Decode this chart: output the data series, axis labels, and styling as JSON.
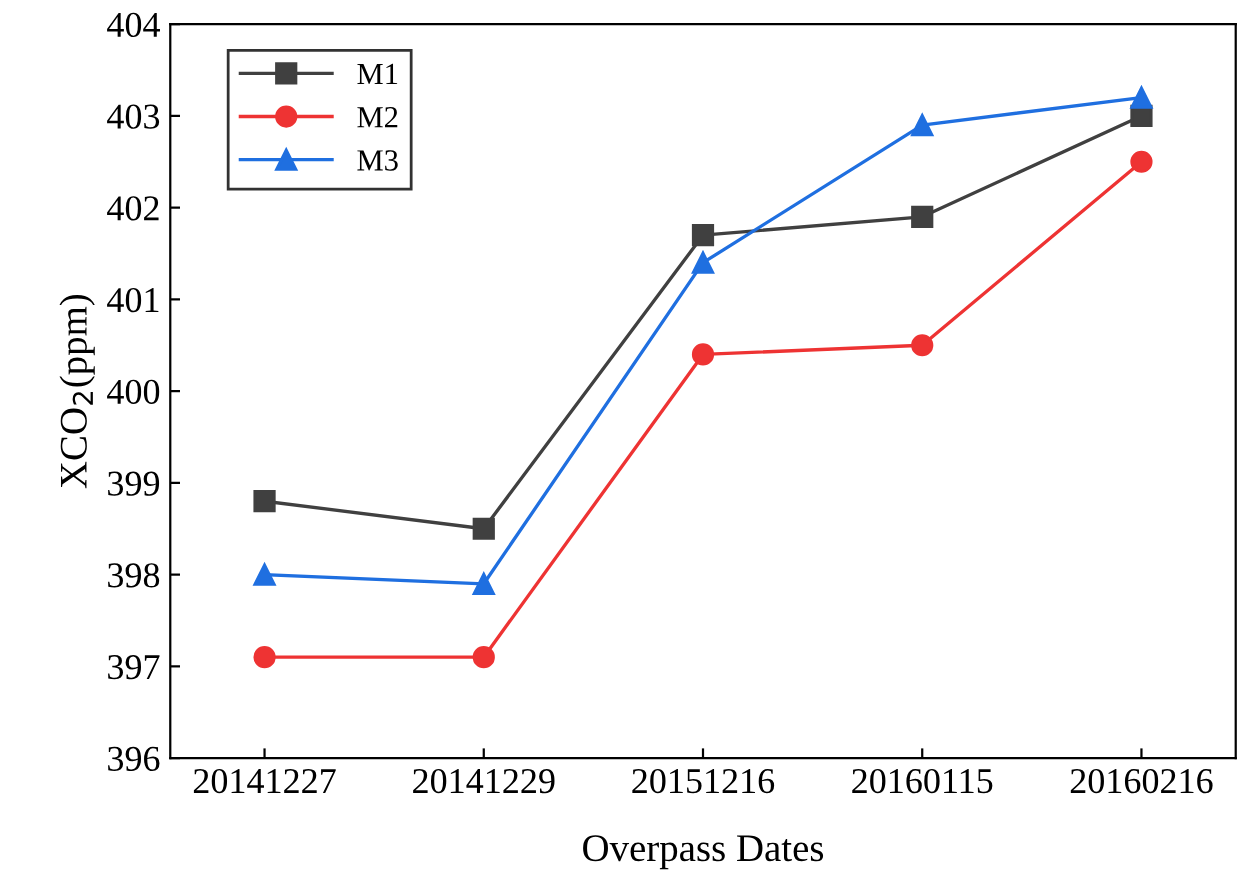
{
  "chart_data": {
    "type": "line",
    "xlabel": "Overpass Dates",
    "ylabel": "XCO$_{2}$(ppm)",
    "categories": [
      "20141227",
      "20141229",
      "20151216",
      "20160115",
      "20160216"
    ],
    "ylim": [
      396,
      404
    ],
    "yticks": [
      396,
      397,
      398,
      399,
      400,
      401,
      402,
      403,
      404
    ],
    "grid": false,
    "legend": "top left",
    "line_style": "solid",
    "series": [
      {
        "name": "M1",
        "color": "#404040",
        "marker": "square",
        "values": [
          398.8,
          398.5,
          401.7,
          401.9,
          403.0
        ]
      },
      {
        "name": "M2",
        "color": "#ee3333",
        "marker": "circle",
        "values": [
          397.1,
          397.1,
          400.4,
          400.5,
          402.5
        ]
      },
      {
        "name": "M3",
        "color": "#1f6fe0",
        "marker": "triangle",
        "values": [
          398.0,
          397.9,
          401.4,
          402.9,
          403.2
        ]
      }
    ]
  }
}
